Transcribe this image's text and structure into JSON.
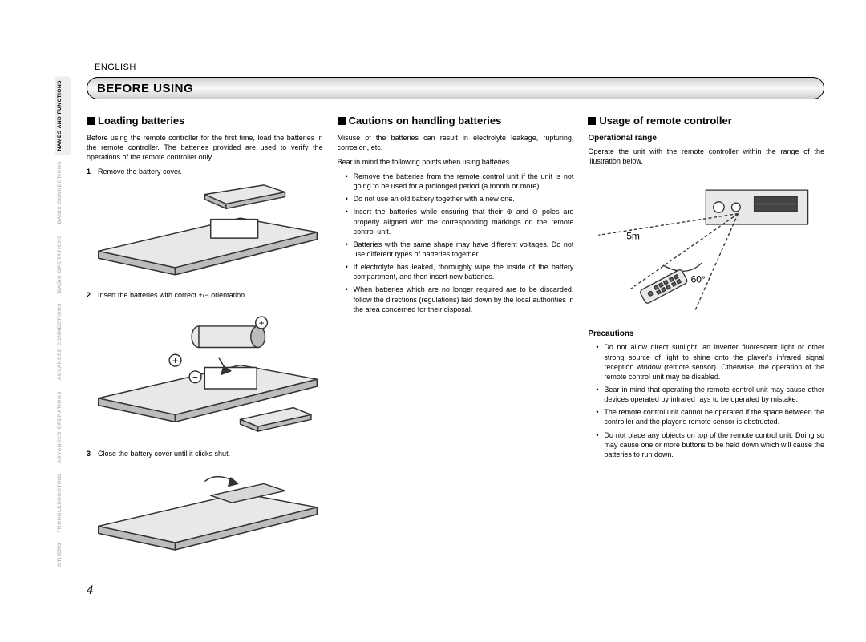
{
  "language_label": "ENGLISH",
  "title_bar": "BEFORE USING",
  "page_number": "4",
  "side_tabs": [
    {
      "label": "NAMES AND FUNCTIONS",
      "active": true
    },
    {
      "label": "BASIC CONNECTIONS",
      "active": false
    },
    {
      "label": "BASIC OPERATIONS",
      "active": false
    },
    {
      "label": "ADVANCED CONNECTIONS",
      "active": false
    },
    {
      "label": "ADVANCED OPERATIONS",
      "active": false
    },
    {
      "label": "TROUBLESHOOTING",
      "active": false
    },
    {
      "label": "OTHERS",
      "active": false
    }
  ],
  "col1": {
    "heading": "Loading batteries",
    "intro": "Before using the remote controller for the first time, load the batteries in the remote controller. The batteries provided are used to verify the operations of the remote controller only.",
    "steps": [
      {
        "n": "1",
        "text": "Remove the battery cover."
      },
      {
        "n": "2",
        "text": "Insert the batteries with correct +/− orientation."
      },
      {
        "n": "3",
        "text": "Close the battery cover until it clicks shut."
      }
    ]
  },
  "col2": {
    "heading": "Cautions on handling batteries",
    "intro1": "Misuse of the batteries can result in electrolyte leakage, rupturing, corrosion, etc.",
    "intro2": "Bear in mind the following points when using batteries.",
    "bullets": [
      "Remove the batteries from the remote control unit if the unit is not going to be used for a prolonged period (a month or more).",
      "Do not use an old battery together with a new one.",
      "Insert the batteries while ensuring that their ⊕ and ⊖ poles are properly aligned with the corresponding markings on the remote control unit.",
      "Batteries with the same shape may have different voltages. Do not use different types of batteries together.",
      "If electrolyte has leaked, thoroughly wipe the inside of the battery compartment, and then insert new batteries.",
      "When batteries which are no longer required are to be discarded, follow the directions (regulations) laid down by the local authorities in the area concerned for their disposal."
    ]
  },
  "col3": {
    "heading": "Usage of remote controller",
    "sub1": "Operational range",
    "op_text": "Operate the unit with the remote controller within the range of the illustration below.",
    "range_distance": "5m",
    "range_angle": "60°",
    "sub2": "Precautions",
    "bullets": [
      "Do not allow direct sunlight, an inverter fluorescent light or other strong source of light to shine onto the player's infrared signal reception window (remote sensor). Otherwise, the operation of the remote control unit may be disabled.",
      "Bear in mind that operating the remote control unit may cause other devices operated by infrared rays to be operated by mistake.",
      "The remote control unit cannot be operated if the space between the controller and the player's remote sensor is obstructed.",
      "Do not place any objects on top of the remote control unit. Doing so may cause one or more buttons to be held down which will cause the batteries to run down."
    ]
  },
  "colors": {
    "text": "#000000",
    "bg": "#ffffff",
    "tab_inactive": "#b8b8b8",
    "tab_active_bg": "#eeeeee",
    "illus_fill": "#e8e8e8",
    "illus_dark": "#bcbcbc",
    "illus_stroke": "#333333"
  }
}
